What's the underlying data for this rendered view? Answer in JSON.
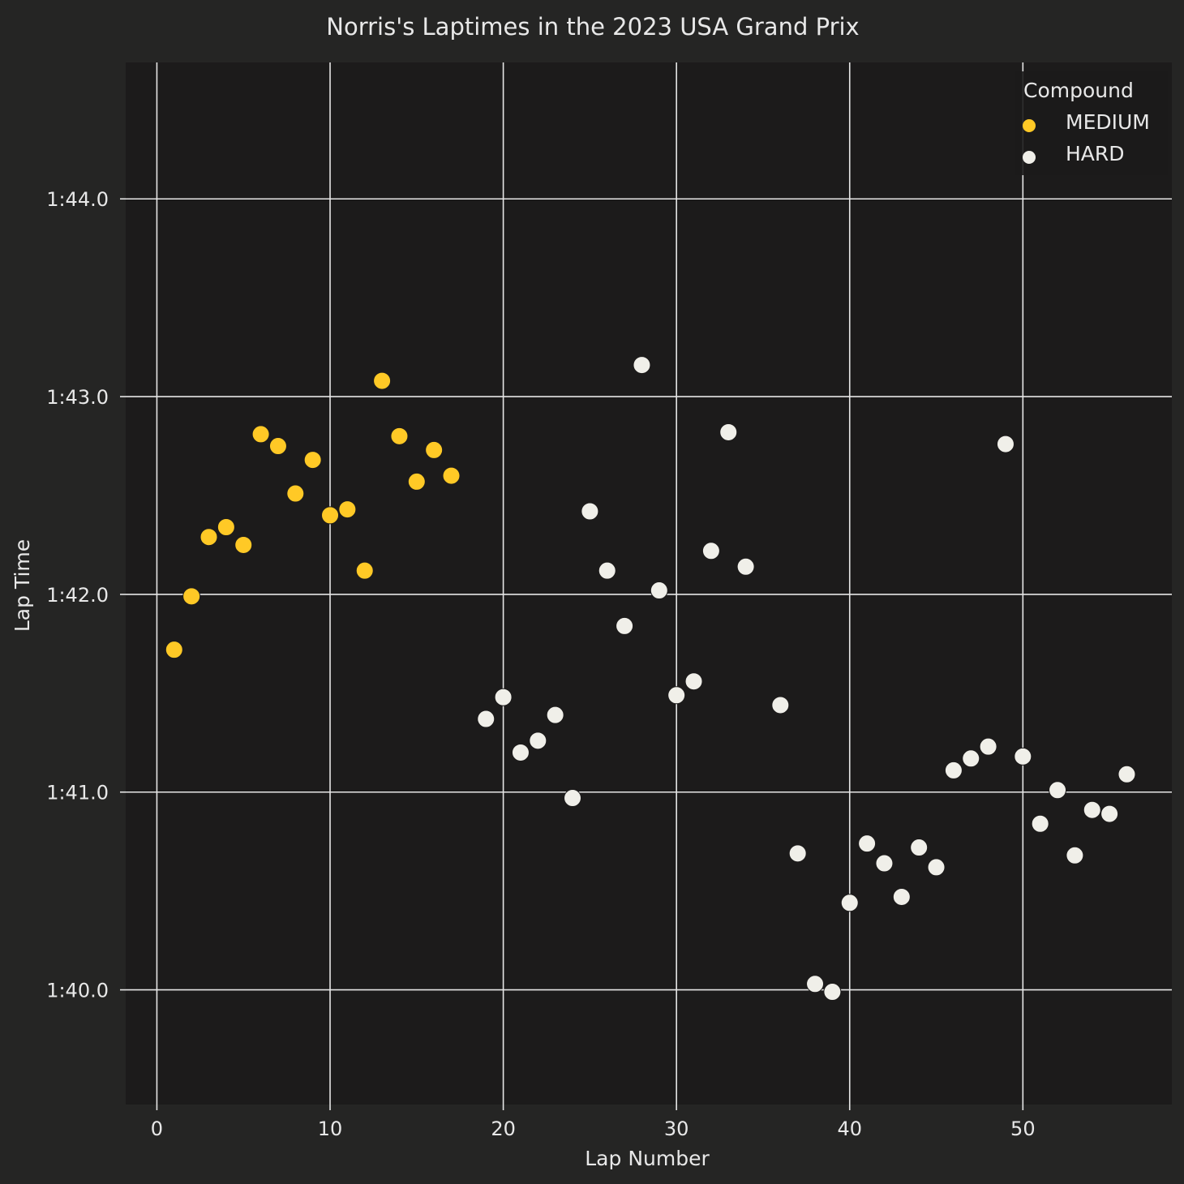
{
  "chart_data": {
    "type": "scatter",
    "title": "Norris's Laptimes in the 2023 USA Grand Prix",
    "xlabel": "Lap Number",
    "ylabel": "Lap Time",
    "xlim": [
      -1.8,
      58.6
    ],
    "ylim": [
      99.42,
      104.69
    ],
    "xticks": [
      0,
      10,
      20,
      30,
      40,
      50
    ],
    "xtick_labels": [
      "0",
      "10",
      "20",
      "30",
      "40",
      "50"
    ],
    "yticks": [
      100,
      101,
      102,
      103,
      104
    ],
    "ytick_labels": [
      "1:40.0",
      "1:41.0",
      "1:42.0",
      "1:43.0",
      "1:44.0"
    ],
    "grid": true,
    "background": "#1c1b1b",
    "figure_background": "#252524",
    "legend": {
      "title": "Compound",
      "position": "top-right"
    },
    "series": [
      {
        "name": "MEDIUM",
        "color": "#ffc926",
        "points": [
          [
            1,
            101.72
          ],
          [
            2,
            101.99
          ],
          [
            3,
            102.29
          ],
          [
            4,
            102.34
          ],
          [
            5,
            102.25
          ],
          [
            6,
            102.81
          ],
          [
            7,
            102.75
          ],
          [
            8,
            102.51
          ],
          [
            9,
            102.68
          ],
          [
            10,
            102.4
          ],
          [
            11,
            102.43
          ],
          [
            12,
            102.12
          ],
          [
            13,
            103.08
          ],
          [
            14,
            102.8
          ],
          [
            15,
            102.57
          ],
          [
            16,
            102.73
          ],
          [
            17,
            102.6
          ]
        ]
      },
      {
        "name": "HARD",
        "color": "#f0efe9",
        "points": [
          [
            19,
            101.37
          ],
          [
            20,
            101.48
          ],
          [
            21,
            101.2
          ],
          [
            22,
            101.26
          ],
          [
            23,
            101.39
          ],
          [
            24,
            100.97
          ],
          [
            25,
            102.42
          ],
          [
            26,
            102.12
          ],
          [
            27,
            101.84
          ],
          [
            28,
            103.16
          ],
          [
            29,
            102.02
          ],
          [
            30,
            101.49
          ],
          [
            31,
            101.56
          ],
          [
            32,
            102.22
          ],
          [
            33,
            102.82
          ],
          [
            34,
            102.14
          ],
          [
            36,
            101.44
          ],
          [
            37,
            100.69
          ],
          [
            38,
            100.03
          ],
          [
            39,
            99.99
          ],
          [
            40,
            100.44
          ],
          [
            41,
            100.74
          ],
          [
            42,
            100.64
          ],
          [
            43,
            100.47
          ],
          [
            44,
            100.72
          ],
          [
            45,
            100.62
          ],
          [
            46,
            101.11
          ],
          [
            47,
            101.17
          ],
          [
            48,
            101.23
          ],
          [
            49,
            102.76
          ],
          [
            50,
            101.18
          ],
          [
            51,
            100.84
          ],
          [
            52,
            101.01
          ],
          [
            53,
            100.68
          ],
          [
            54,
            100.91
          ],
          [
            55,
            100.89
          ],
          [
            56,
            101.09
          ]
        ]
      }
    ]
  }
}
